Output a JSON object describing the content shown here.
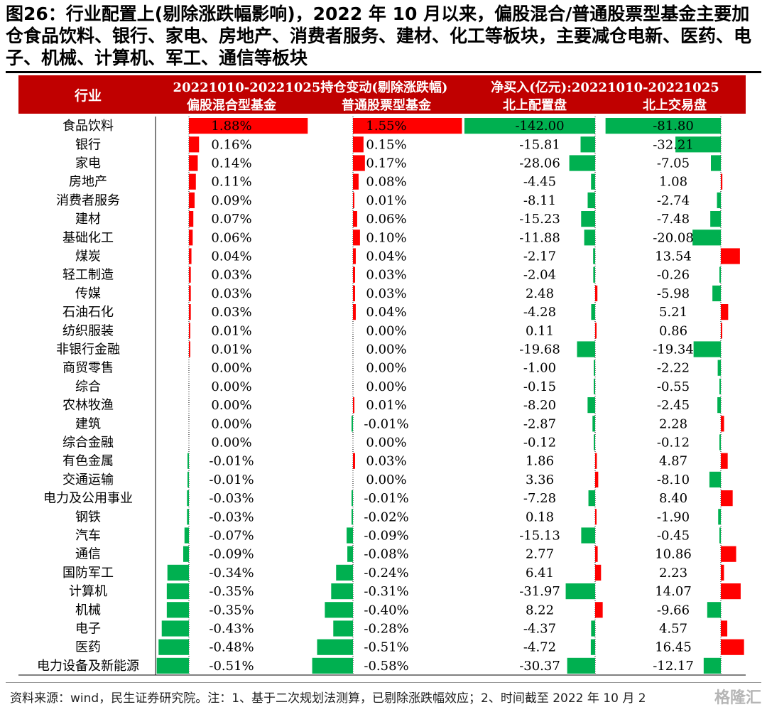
{
  "title": "图26：行业配置上(剔除涨跌幅影响)，2022 年 10 月以来，偏股混合/普通股票型基金主要加仓食品饮料、银行、家电、房地产、消费者服务、建材、化工等板块，主要减仓电新、医药、电子、机械、计算机、军工、通信等板块",
  "source": "资料来源：wind，民生证券研究院。注：1、基于二次规划法测算，已剔除涨跌幅效应；2、时间截至 2022 年 10 月 2",
  "watermark": "格隆汇",
  "colors": {
    "header_bg": "#c00000",
    "header_text": "#ffffff",
    "positive": "#ff0000",
    "negative": "#00b050"
  },
  "chart_data": {
    "type": "table",
    "header": {
      "industry": "行业",
      "group1": "20221010-20221025持仓变动(剔除涨跌幅)",
      "group2": "净买入(亿元):20221010-20221025",
      "columns": [
        "偏股混合型基金",
        "普通股票型基金",
        "北上配置盘",
        "北上交易盘"
      ]
    },
    "rows": [
      {
        "industry": "食品饮料",
        "values": [
          "1.88%",
          "1.55%",
          "-142.00",
          "-81.80"
        ],
        "nums": [
          1.88,
          1.55,
          -142.0,
          -81.8
        ]
      },
      {
        "industry": "银行",
        "values": [
          "0.16%",
          "0.15%",
          "-15.81",
          "-32.21"
        ],
        "nums": [
          0.16,
          0.15,
          -15.81,
          -32.21
        ]
      },
      {
        "industry": "家电",
        "values": [
          "0.14%",
          "0.17%",
          "-28.06",
          "-7.05"
        ],
        "nums": [
          0.14,
          0.17,
          -28.06,
          -7.05
        ]
      },
      {
        "industry": "房地产",
        "values": [
          "0.11%",
          "0.08%",
          "-4.45",
          "1.08"
        ],
        "nums": [
          0.11,
          0.08,
          -4.45,
          1.08
        ]
      },
      {
        "industry": "消费者服务",
        "values": [
          "0.09%",
          "0.01%",
          "-8.11",
          "-2.74"
        ],
        "nums": [
          0.09,
          0.01,
          -8.11,
          -2.74
        ]
      },
      {
        "industry": "建材",
        "values": [
          "0.07%",
          "0.06%",
          "-15.23",
          "-7.48"
        ],
        "nums": [
          0.07,
          0.06,
          -15.23,
          -7.48
        ]
      },
      {
        "industry": "基础化工",
        "values": [
          "0.06%",
          "0.10%",
          "-11.88",
          "-20.08"
        ],
        "nums": [
          0.06,
          0.1,
          -11.88,
          -20.08
        ]
      },
      {
        "industry": "煤炭",
        "values": [
          "0.04%",
          "0.04%",
          "-2.17",
          "13.54"
        ],
        "nums": [
          0.04,
          0.04,
          -2.17,
          13.54
        ]
      },
      {
        "industry": "轻工制造",
        "values": [
          "0.03%",
          "0.03%",
          "-2.04",
          "-0.26"
        ],
        "nums": [
          0.03,
          0.03,
          -2.04,
          -0.26
        ]
      },
      {
        "industry": "传媒",
        "values": [
          "0.03%",
          "0.03%",
          "2.48",
          "-5.98"
        ],
        "nums": [
          0.03,
          0.03,
          2.48,
          -5.98
        ]
      },
      {
        "industry": "石油石化",
        "values": [
          "0.03%",
          "0.04%",
          "-4.28",
          "5.21"
        ],
        "nums": [
          0.03,
          0.04,
          -4.28,
          5.21
        ]
      },
      {
        "industry": "纺织服装",
        "values": [
          "0.01%",
          "0.00%",
          "0.11",
          "0.86"
        ],
        "nums": [
          0.01,
          0.0,
          0.11,
          0.86
        ]
      },
      {
        "industry": "非银行金融",
        "values": [
          "0.01%",
          "0.00%",
          "-19.68",
          "-19.34"
        ],
        "nums": [
          0.01,
          0.0,
          -19.68,
          -19.34
        ]
      },
      {
        "industry": "商贸零售",
        "values": [
          "0.00%",
          "0.00%",
          "-1.00",
          "-2.22"
        ],
        "nums": [
          0.0,
          0.0,
          -1.0,
          -2.22
        ]
      },
      {
        "industry": "综合",
        "values": [
          "0.00%",
          "0.00%",
          "-0.15",
          "-0.55"
        ],
        "nums": [
          0.0,
          0.0,
          -0.15,
          -0.55
        ]
      },
      {
        "industry": "农林牧渔",
        "values": [
          "0.00%",
          "0.01%",
          "-8.20",
          "-2.45"
        ],
        "nums": [
          0.0,
          0.01,
          -8.2,
          -2.45
        ]
      },
      {
        "industry": "建筑",
        "values": [
          "0.00%",
          "-0.01%",
          "-2.87",
          "2.28"
        ],
        "nums": [
          0.0,
          -0.01,
          -2.87,
          2.28
        ]
      },
      {
        "industry": "综合金融",
        "values": [
          "0.00%",
          "0.00%",
          "-0.12",
          "-0.12"
        ],
        "nums": [
          0.0,
          0.0,
          -0.12,
          -0.12
        ]
      },
      {
        "industry": "有色金属",
        "values": [
          "-0.01%",
          "0.03%",
          "1.86",
          "4.87"
        ],
        "nums": [
          -0.01,
          0.03,
          1.86,
          4.87
        ]
      },
      {
        "industry": "交通运输",
        "values": [
          "-0.01%",
          "0.00%",
          "3.36",
          "-8.10"
        ],
        "nums": [
          -0.01,
          0.0,
          3.36,
          -8.1
        ]
      },
      {
        "industry": "电力及公用事业",
        "values": [
          "-0.03%",
          "-0.01%",
          "-7.28",
          "8.40"
        ],
        "nums": [
          -0.03,
          -0.01,
          -7.28,
          8.4
        ]
      },
      {
        "industry": "钢铁",
        "values": [
          "-0.03%",
          "-0.02%",
          "0.18",
          "-1.90"
        ],
        "nums": [
          -0.03,
          -0.02,
          0.18,
          -1.9
        ]
      },
      {
        "industry": "汽车",
        "values": [
          "-0.07%",
          "-0.09%",
          "-15.13",
          "-0.45"
        ],
        "nums": [
          -0.07,
          -0.09,
          -15.13,
          -0.45
        ]
      },
      {
        "industry": "通信",
        "values": [
          "-0.09%",
          "-0.08%",
          "2.77",
          "10.86"
        ],
        "nums": [
          -0.09,
          -0.08,
          2.77,
          10.86
        ]
      },
      {
        "industry": "国防军工",
        "values": [
          "-0.34%",
          "-0.24%",
          "6.41",
          "2.23"
        ],
        "nums": [
          -0.34,
          -0.24,
          6.41,
          2.23
        ]
      },
      {
        "industry": "计算机",
        "values": [
          "-0.35%",
          "-0.31%",
          "-31.97",
          "14.07"
        ],
        "nums": [
          -0.35,
          -0.31,
          -31.97,
          14.07
        ]
      },
      {
        "industry": "机械",
        "values": [
          "-0.35%",
          "-0.40%",
          "8.22",
          "-9.66"
        ],
        "nums": [
          -0.35,
          -0.4,
          8.22,
          -9.66
        ]
      },
      {
        "industry": "电子",
        "values": [
          "-0.43%",
          "-0.28%",
          "-4.37",
          "4.57"
        ],
        "nums": [
          -0.43,
          -0.28,
          -4.37,
          4.57
        ]
      },
      {
        "industry": "医药",
        "values": [
          "-0.48%",
          "-0.51%",
          "-4.72",
          "16.45"
        ],
        "nums": [
          -0.48,
          -0.51,
          -4.72,
          16.45
        ]
      },
      {
        "industry": "电力设备及新能源",
        "values": [
          "-0.51%",
          "-0.58%",
          "-30.37",
          "-12.17"
        ],
        "nums": [
          -0.51,
          -0.58,
          -30.37,
          -12.17
        ]
      }
    ]
  }
}
